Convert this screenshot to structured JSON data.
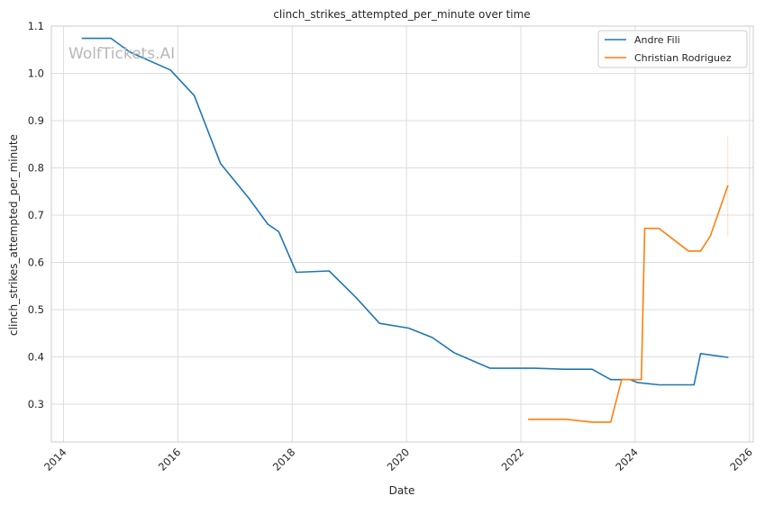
{
  "chart_data": {
    "type": "line",
    "title": "clinch_strikes_attempted_per_minute over time",
    "xlabel": "Date",
    "ylabel": "clinch_strikes_attempted_per_minute",
    "watermark": "WolfTickets.AI",
    "xlim": [
      "2013-10-15",
      "2026-01-25"
    ],
    "ylim": [
      0.22,
      1.1
    ],
    "x_ticks": [
      "2014",
      "2016",
      "2018",
      "2020",
      "2022",
      "2024",
      "2026"
    ],
    "y_ticks": [
      "0.3",
      "0.4",
      "0.5",
      "0.6",
      "0.7",
      "0.8",
      "0.9",
      "1.0",
      "1.1"
    ],
    "grid": true,
    "legend_position": "top-right",
    "series": [
      {
        "name": "Andre Fili",
        "color": "#1f77b4",
        "points": [
          [
            "2014-05-01",
            1.074
          ],
          [
            "2014-11-01",
            1.074
          ],
          [
            "2015-03-01",
            1.045
          ],
          [
            "2015-11-15",
            1.007
          ],
          [
            "2016-04-15",
            0.953
          ],
          [
            "2016-09-30",
            0.809
          ],
          [
            "2017-04-01",
            0.735
          ],
          [
            "2017-07-29",
            0.681
          ],
          [
            "2017-10-07",
            0.665
          ],
          [
            "2018-01-27",
            0.579
          ],
          [
            "2018-08-25",
            0.582
          ],
          [
            "2019-02-15",
            0.525
          ],
          [
            "2019-07-13",
            0.471
          ],
          [
            "2020-01-15",
            0.461
          ],
          [
            "2020-06-15",
            0.441
          ],
          [
            "2020-10-31",
            0.409
          ],
          [
            "2021-06-19",
            0.376
          ],
          [
            "2022-04-01",
            0.376
          ],
          [
            "2022-10-01",
            0.374
          ],
          [
            "2023-04-01",
            0.374
          ],
          [
            "2023-07-29",
            0.352
          ],
          [
            "2023-12-01",
            0.352
          ],
          [
            "2024-01-15",
            0.346
          ],
          [
            "2024-06-01",
            0.341
          ],
          [
            "2025-01-11",
            0.341
          ],
          [
            "2025-02-22",
            0.407
          ],
          [
            "2025-08-15",
            0.399
          ]
        ]
      },
      {
        "name": "Christian Rodriguez",
        "color": "#ff7f0e",
        "points": [
          [
            "2022-02-19",
            0.268
          ],
          [
            "2022-10-15",
            0.268
          ],
          [
            "2023-04-01",
            0.262
          ],
          [
            "2023-07-29",
            0.262
          ],
          [
            "2023-10-07",
            0.352
          ],
          [
            "2024-02-10",
            0.352
          ],
          [
            "2024-03-02",
            0.672
          ],
          [
            "2024-06-01",
            0.672
          ],
          [
            "2024-12-07",
            0.624
          ],
          [
            "2025-02-22",
            0.624
          ],
          [
            "2025-04-26",
            0.656
          ],
          [
            "2025-08-15",
            0.762
          ]
        ],
        "band_at_end": [
          0.655,
          0.868
        ]
      }
    ]
  }
}
